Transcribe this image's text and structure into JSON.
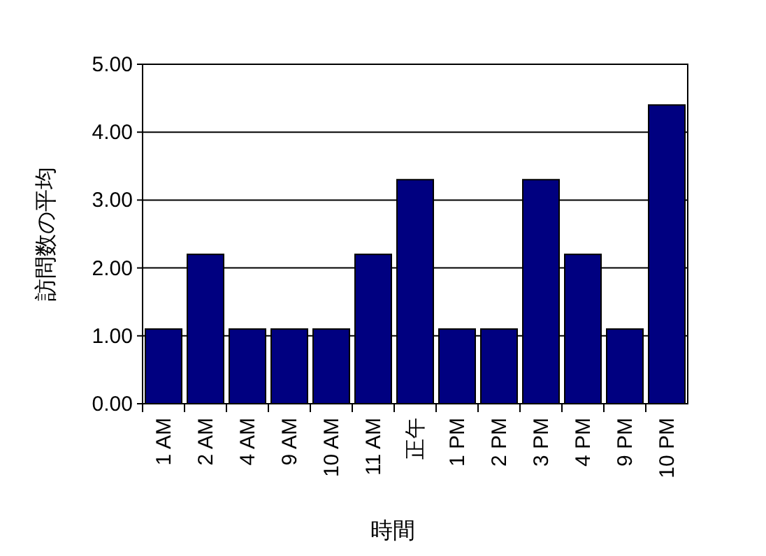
{
  "chart_data": {
    "type": "bar",
    "xlabel": "時間",
    "ylabel": "訪問数の平均",
    "categories": [
      "1 AM",
      "2 AM",
      "4 AM",
      "9 AM",
      "10 AM",
      "11 AM",
      "正午",
      "1 PM",
      "2 PM",
      "3 PM",
      "4 PM",
      "9 PM",
      "10 PM"
    ],
    "values": [
      1.1,
      2.2,
      1.1,
      1.1,
      1.1,
      2.2,
      3.3,
      1.1,
      1.1,
      3.3,
      2.2,
      1.1,
      4.4
    ],
    "color": "#000080",
    "ylim": [
      0,
      5
    ],
    "yticks": [
      {
        "value": 0,
        "label": "0.00"
      },
      {
        "value": 1,
        "label": "1.00"
      },
      {
        "value": 2,
        "label": "2.00"
      },
      {
        "value": 3,
        "label": "3.00"
      },
      {
        "value": 4,
        "label": "4.00"
      },
      {
        "value": 5,
        "label": "5.00"
      }
    ],
    "grid": "y"
  }
}
